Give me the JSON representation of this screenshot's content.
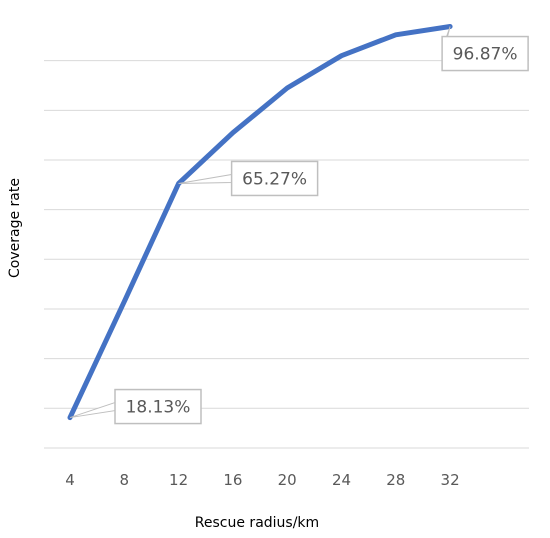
{
  "chart_data": {
    "type": "line",
    "title": "",
    "xlabel": "Rescue radius/km",
    "ylabel": "Coverage rate",
    "x": [
      4,
      8,
      12,
      16,
      20,
      24,
      28,
      32
    ],
    "series": [
      {
        "values": [
          18.13,
          41.5,
          65.27,
          75.5,
          84.5,
          91.0,
          95.2,
          96.87
        ],
        "color": "#4472C4"
      }
    ],
    "data_labels": [
      {
        "x": 4,
        "text": "18.13%"
      },
      {
        "x": 12,
        "text": "65.27%"
      },
      {
        "x": 32,
        "text": "96.87%"
      }
    ],
    "ylim": [
      12,
      100
    ],
    "y_gridlines": [
      20,
      30,
      40,
      50,
      60,
      70,
      80,
      90
    ],
    "y_tick_labels_visible": false,
    "grid": true,
    "gridline_color": "#d9d9d9",
    "label_border_color": "#bfbfbf",
    "legend": "none"
  }
}
